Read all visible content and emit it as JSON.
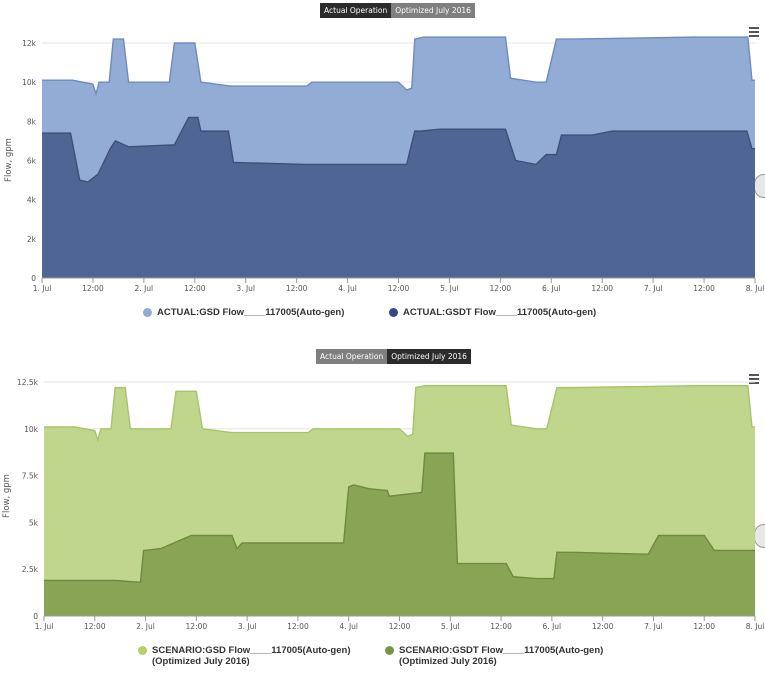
{
  "chart_data": [
    {
      "type": "area",
      "toggle": {
        "active": "Actual Operation",
        "inactive": "Optimized July 2016"
      },
      "ylabel": "Flow, gpm",
      "ylim": [
        0,
        12000
      ],
      "yticks": [
        0,
        2000,
        4000,
        6000,
        8000,
        10000,
        12000
      ],
      "ytick_labels": [
        "0",
        "2k",
        "4k",
        "6k",
        "8k",
        "10k",
        "12k"
      ],
      "xlim": [
        0,
        7
      ],
      "xticks": [
        0,
        0.5,
        1,
        1.5,
        2,
        2.5,
        3,
        3.5,
        4,
        4.5,
        5,
        5.5,
        6,
        6.5,
        7
      ],
      "xtick_labels": [
        "1. Jul",
        "12:00",
        "2. Jul",
        "12:00",
        "3. Jul",
        "12:00",
        "4. Jul",
        "12:00",
        "5. Jul",
        "12:00",
        "6. Jul",
        "12:00",
        "7. Jul",
        "12:00",
        "8. Jul"
      ],
      "series": [
        {
          "name": "ACTUAL:GSD Flow____117005(Auto-gen)",
          "color": "#93acd5",
          "points": [
            [
              0,
              10100
            ],
            [
              0.3,
              10100
            ],
            [
              0.5,
              9900
            ],
            [
              0.53,
              9400
            ],
            [
              0.56,
              10000
            ],
            [
              0.66,
              10000
            ],
            [
              0.7,
              12200
            ],
            [
              0.8,
              12200
            ],
            [
              0.85,
              10000
            ],
            [
              1.25,
              10000
            ],
            [
              1.3,
              12000
            ],
            [
              1.5,
              12000
            ],
            [
              1.56,
              10000
            ],
            [
              1.85,
              9800
            ],
            [
              2.6,
              9800
            ],
            [
              2.65,
              10000
            ],
            [
              3.5,
              10000
            ],
            [
              3.58,
              9600
            ],
            [
              3.63,
              9700
            ],
            [
              3.66,
              12200
            ],
            [
              3.75,
              12300
            ],
            [
              4.55,
              12300
            ],
            [
              4.6,
              10200
            ],
            [
              4.85,
              10000
            ],
            [
              4.95,
              10000
            ],
            [
              5.05,
              12200
            ],
            [
              5.2,
              12200
            ],
            [
              6.4,
              12300
            ],
            [
              6.93,
              12300
            ],
            [
              6.97,
              10100
            ],
            [
              7,
              10100
            ]
          ]
        },
        {
          "name": "ACTUAL:GSDT Flow____117005(Auto-gen)",
          "color": "#4f6694",
          "points": [
            [
              0,
              7400
            ],
            [
              0.28,
              7400
            ],
            [
              0.37,
              5000
            ],
            [
              0.45,
              4900
            ],
            [
              0.55,
              5300
            ],
            [
              0.67,
              6600
            ],
            [
              0.72,
              7000
            ],
            [
              0.85,
              6700
            ],
            [
              1.3,
              6800
            ],
            [
              1.44,
              8200
            ],
            [
              1.53,
              8200
            ],
            [
              1.56,
              7500
            ],
            [
              1.83,
              7500
            ],
            [
              1.88,
              5900
            ],
            [
              2.6,
              5800
            ],
            [
              3.58,
              5800
            ],
            [
              3.66,
              7500
            ],
            [
              3.72,
              7500
            ],
            [
              3.9,
              7600
            ],
            [
              4.55,
              7600
            ],
            [
              4.65,
              6000
            ],
            [
              4.85,
              5800
            ],
            [
              4.95,
              6300
            ],
            [
              5.05,
              6300
            ],
            [
              5.1,
              7300
            ],
            [
              5.4,
              7300
            ],
            [
              5.6,
              7500
            ],
            [
              6.92,
              7500
            ],
            [
              6.97,
              6600
            ],
            [
              7,
              6600
            ]
          ]
        }
      ]
    },
    {
      "type": "area",
      "toggle": {
        "active": "Actual Operation",
        "inactive": "Optimized July 2016"
      },
      "ylabel": "Flow, gpm",
      "ylim": [
        0,
        12500
      ],
      "yticks": [
        0,
        2500,
        5000,
        7500,
        10000,
        12500
      ],
      "ytick_labels": [
        "0",
        "2.5k",
        "5k",
        "7.5k",
        "10k",
        "12.5k"
      ],
      "xlim": [
        0,
        7
      ],
      "xticks": [
        0,
        0.5,
        1,
        1.5,
        2,
        2.5,
        3,
        3.5,
        4,
        4.5,
        5,
        5.5,
        6,
        6.5,
        7
      ],
      "xtick_labels": [
        "1. Jul",
        "12:00",
        "2. Jul",
        "12:00",
        "3. Jul",
        "12:00",
        "4. Jul",
        "12:00",
        "5. Jul",
        "12:00",
        "6. Jul",
        "12:00",
        "7. Jul",
        "12:00",
        "8. Jul"
      ],
      "series": [
        {
          "name": "SCENARIO:GSD Flow____117005(Auto-gen)",
          "name_line2": "(Optimized July 2016)",
          "color": "#bfd68c",
          "points": [
            [
              0,
              10100
            ],
            [
              0.3,
              10100
            ],
            [
              0.5,
              9900
            ],
            [
              0.53,
              9400
            ],
            [
              0.56,
              10000
            ],
            [
              0.66,
              10000
            ],
            [
              0.7,
              12200
            ],
            [
              0.8,
              12200
            ],
            [
              0.85,
              10000
            ],
            [
              1.25,
              10000
            ],
            [
              1.3,
              12000
            ],
            [
              1.5,
              12000
            ],
            [
              1.56,
              10000
            ],
            [
              1.85,
              9800
            ],
            [
              2.6,
              9800
            ],
            [
              2.65,
              10000
            ],
            [
              3.5,
              10000
            ],
            [
              3.58,
              9600
            ],
            [
              3.63,
              9700
            ],
            [
              3.66,
              12200
            ],
            [
              3.75,
              12300
            ],
            [
              4.55,
              12300
            ],
            [
              4.6,
              10200
            ],
            [
              4.85,
              10000
            ],
            [
              4.95,
              10000
            ],
            [
              5.05,
              12200
            ],
            [
              5.2,
              12200
            ],
            [
              6.4,
              12300
            ],
            [
              6.93,
              12300
            ],
            [
              6.97,
              10100
            ],
            [
              7,
              10100
            ]
          ]
        },
        {
          "name": "SCENARIO:GSDT Flow____117005(Auto-gen)",
          "name_line2": "(Optimized July 2016)",
          "color": "#8aa456",
          "points": [
            [
              0,
              1900
            ],
            [
              0.7,
              1900
            ],
            [
              0.95,
              1800
            ],
            [
              0.98,
              3500
            ],
            [
              1.15,
              3600
            ],
            [
              1.45,
              4300
            ],
            [
              1.85,
              4300
            ],
            [
              1.9,
              3600
            ],
            [
              1.95,
              3900
            ],
            [
              2.95,
              3900
            ],
            [
              3.0,
              6900
            ],
            [
              3.05,
              7000
            ],
            [
              3.2,
              6800
            ],
            [
              3.38,
              6700
            ],
            [
              3.4,
              6400
            ],
            [
              3.72,
              6600
            ],
            [
              3.75,
              8700
            ],
            [
              4.03,
              8700
            ],
            [
              4.07,
              2800
            ],
            [
              4.55,
              2800
            ],
            [
              4.62,
              2100
            ],
            [
              4.85,
              2000
            ],
            [
              5.02,
              2000
            ],
            [
              5.05,
              3400
            ],
            [
              5.2,
              3400
            ],
            [
              5.95,
              3300
            ],
            [
              6.05,
              4300
            ],
            [
              6.5,
              4300
            ],
            [
              6.6,
              3500
            ],
            [
              7,
              3500
            ]
          ]
        }
      ]
    }
  ]
}
